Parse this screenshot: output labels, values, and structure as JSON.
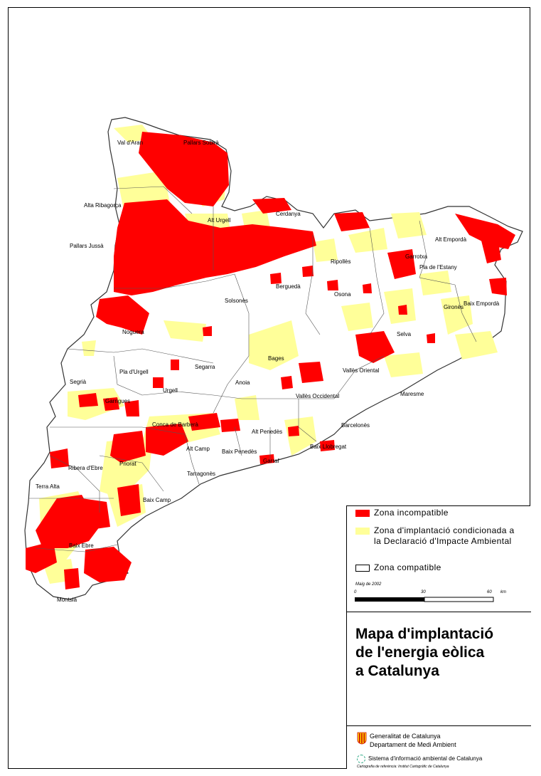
{
  "map": {
    "colors": {
      "incompatible": "#ff0000",
      "conditioned": "#ffff99",
      "compatible": "#ffffff",
      "border": "#555555"
    },
    "comarques": [
      "Pallars Sobirà",
      "Val d'Aran",
      "Alta Ribagorça",
      "Pallars Jussà",
      "Alt Urgell",
      "Cerdanya",
      "Ripollès",
      "Garrotxa",
      "Alt Empordà",
      "Pla de l'Estany",
      "Berguedà",
      "Solsonès",
      "Osona",
      "Gironès",
      "Baix Empordà",
      "Noguera",
      "Selva",
      "Bages",
      "Pla d'Urgell",
      "Segarra",
      "Vallès Oriental",
      "Segrià",
      "Urgell",
      "Anoia",
      "Vallès Occidental",
      "Maresme",
      "Garrigues",
      "Conca de Barberà",
      "Alt Penedès",
      "Barcelonès",
      "Ribera d'Ebre",
      "Priorat",
      "Alt Camp",
      "Baix Penedès",
      "Baix Llobregat",
      "Tarragonès",
      "Garraf",
      "Terra Alta",
      "Baix Camp",
      "Baix Ebre",
      "Montsià"
    ]
  },
  "legend": {
    "incompatible": "Zona  incompatible",
    "conditioned": "Zona d'implantació condicionada a la Declaració d'Impacte Ambiental",
    "compatible": "Zona  compatible"
  },
  "scale": {
    "date": "Maig de 2002",
    "ticks": [
      "0",
      "30",
      "60"
    ],
    "unit": "km"
  },
  "title": "Mapa d'implantació\nde l'energia eòlica\na Catalunya",
  "credits": {
    "org1": "Generalitat de Catalunya",
    "org2": "Departament de Medi Ambient",
    "system": "Sistema d'informació ambiental de Catalunya",
    "footnote": "Cartografia de referència: Institut Cartogràfic de Catalunya"
  }
}
